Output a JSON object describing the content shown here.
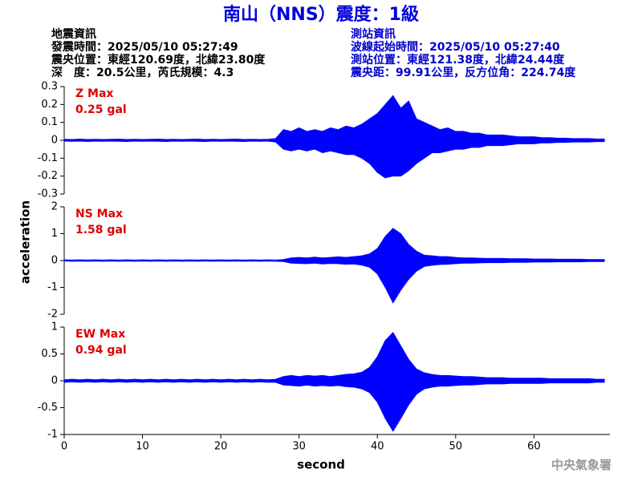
{
  "title": "南山（NNS）震度：1級",
  "info_left": [
    "地震資訊",
    "發震時間：2025/05/10 05:27:49",
    "震央位置：東經120.69度，北緯23.80度",
    "深　度：20.5公里，芮氏規模：4.3"
  ],
  "info_right": [
    "測站資訊",
    "波線起始時間：2025/05/10 05:27:40",
    "測站位置：東經121.38度，北緯24.44度",
    "震央距：99.91公里，反方位角：224.74度"
  ],
  "credit": "中央氣象署",
  "chart_data": [
    {
      "type": "line",
      "label": "Z Max",
      "max_text": "0.25 gal",
      "color": "#0000ff",
      "xlim": [
        0,
        69.7
      ],
      "ylim": [
        -0.3,
        0.3
      ],
      "yticks": [
        0.3,
        0.2,
        0.1,
        0,
        -0.1,
        -0.2,
        -0.3
      ],
      "x": [
        0,
        1,
        2,
        3,
        4,
        5,
        6,
        7,
        8,
        9,
        10,
        11,
        12,
        13,
        14,
        15,
        16,
        17,
        18,
        19,
        20,
        21,
        22,
        23,
        24,
        25,
        26,
        27,
        28,
        29,
        30,
        31,
        32,
        33,
        34,
        35,
        36,
        37,
        38,
        39,
        40,
        41,
        42,
        43,
        44,
        45,
        46,
        47,
        48,
        49,
        50,
        51,
        52,
        53,
        54,
        55,
        56,
        57,
        58,
        59,
        60,
        61,
        62,
        63,
        64,
        65,
        66,
        67,
        68,
        69
      ],
      "upper": [
        0.006,
        0.005,
        0.007,
        0.005,
        0.006,
        0.005,
        0.006,
        0.007,
        0.005,
        0.006,
        0.005,
        0.006,
        0.007,
        0.005,
        0.006,
        0.005,
        0.006,
        0.007,
        0.005,
        0.006,
        0.005,
        0.006,
        0.007,
        0.005,
        0.006,
        0.005,
        0.006,
        0.01,
        0.06,
        0.05,
        0.07,
        0.05,
        0.06,
        0.05,
        0.07,
        0.06,
        0.08,
        0.07,
        0.09,
        0.12,
        0.15,
        0.2,
        0.25,
        0.18,
        0.22,
        0.12,
        0.1,
        0.08,
        0.06,
        0.07,
        0.05,
        0.05,
        0.04,
        0.04,
        0.03,
        0.03,
        0.03,
        0.025,
        0.02,
        0.02,
        0.02,
        0.015,
        0.015,
        0.012,
        0.012,
        0.01,
        0.01,
        0.01,
        0.008,
        0.008
      ],
      "lower": [
        -0.005,
        -0.006,
        -0.005,
        -0.007,
        -0.005,
        -0.006,
        -0.005,
        -0.006,
        -0.007,
        -0.005,
        -0.006,
        -0.005,
        -0.006,
        -0.007,
        -0.005,
        -0.006,
        -0.005,
        -0.006,
        -0.007,
        -0.005,
        -0.006,
        -0.005,
        -0.006,
        -0.007,
        -0.005,
        -0.006,
        -0.005,
        -0.01,
        -0.05,
        -0.06,
        -0.05,
        -0.06,
        -0.05,
        -0.07,
        -0.06,
        -0.07,
        -0.08,
        -0.08,
        -0.1,
        -0.13,
        -0.18,
        -0.21,
        -0.2,
        -0.2,
        -0.17,
        -0.13,
        -0.1,
        -0.07,
        -0.07,
        -0.06,
        -0.05,
        -0.05,
        -0.04,
        -0.04,
        -0.03,
        -0.03,
        -0.03,
        -0.025,
        -0.02,
        -0.02,
        -0.02,
        -0.015,
        -0.015,
        -0.012,
        -0.012,
        -0.01,
        -0.01,
        -0.01,
        -0.008,
        -0.008
      ]
    },
    {
      "type": "line",
      "label": "NS Max",
      "max_text": "1.58 gal",
      "color": "#0000ff",
      "xlim": [
        0,
        69.7
      ],
      "ylim": [
        -2,
        2
      ],
      "yticks": [
        2,
        1,
        0,
        -1,
        -2
      ],
      "ylabel": "acceleration",
      "x": [
        0,
        1,
        2,
        3,
        4,
        5,
        6,
        7,
        8,
        9,
        10,
        11,
        12,
        13,
        14,
        15,
        16,
        17,
        18,
        19,
        20,
        21,
        22,
        23,
        24,
        25,
        26,
        27,
        28,
        29,
        30,
        31,
        32,
        33,
        34,
        35,
        36,
        37,
        38,
        39,
        40,
        41,
        42,
        43,
        44,
        45,
        46,
        47,
        48,
        49,
        50,
        51,
        52,
        53,
        54,
        55,
        56,
        57,
        58,
        59,
        60,
        61,
        62,
        63,
        64,
        65,
        66,
        67,
        68,
        69
      ],
      "upper": [
        0.03,
        0.02,
        0.03,
        0.02,
        0.03,
        0.02,
        0.03,
        0.02,
        0.03,
        0.02,
        0.03,
        0.02,
        0.03,
        0.02,
        0.03,
        0.02,
        0.03,
        0.02,
        0.03,
        0.02,
        0.03,
        0.02,
        0.03,
        0.02,
        0.03,
        0.02,
        0.03,
        0.02,
        0.04,
        0.1,
        0.12,
        0.1,
        0.13,
        0.1,
        0.12,
        0.14,
        0.12,
        0.15,
        0.18,
        0.25,
        0.45,
        0.9,
        1.2,
        1.0,
        0.6,
        0.35,
        0.2,
        0.18,
        0.15,
        0.15,
        0.12,
        0.1,
        0.1,
        0.09,
        0.08,
        0.08,
        0.08,
        0.07,
        0.07,
        0.07,
        0.06,
        0.06,
        0.06,
        0.05,
        0.05,
        0.05,
        0.05,
        0.04,
        0.04,
        0.04
      ],
      "lower": [
        -0.02,
        -0.03,
        -0.02,
        -0.03,
        -0.02,
        -0.03,
        -0.02,
        -0.03,
        -0.02,
        -0.03,
        -0.02,
        -0.03,
        -0.02,
        -0.03,
        -0.02,
        -0.03,
        -0.02,
        -0.03,
        -0.02,
        -0.03,
        -0.02,
        -0.03,
        -0.02,
        -0.03,
        -0.02,
        -0.03,
        -0.02,
        -0.03,
        -0.04,
        -0.1,
        -0.11,
        -0.12,
        -0.1,
        -0.13,
        -0.11,
        -0.12,
        -0.14,
        -0.13,
        -0.17,
        -0.25,
        -0.5,
        -1.0,
        -1.58,
        -1.1,
        -0.7,
        -0.4,
        -0.22,
        -0.18,
        -0.15,
        -0.14,
        -0.12,
        -0.1,
        -0.1,
        -0.09,
        -0.08,
        -0.08,
        -0.08,
        -0.07,
        -0.07,
        -0.07,
        -0.06,
        -0.06,
        -0.06,
        -0.05,
        -0.05,
        -0.05,
        -0.05,
        -0.04,
        -0.04,
        -0.04
      ]
    },
    {
      "type": "line",
      "label": "EW Max",
      "max_text": "0.94 gal",
      "color": "#0000ff",
      "xlim": [
        0,
        69.7
      ],
      "ylim": [
        -1,
        1
      ],
      "yticks": [
        1,
        0.5,
        0,
        -0.5,
        -1
      ],
      "xticks": [
        0,
        10,
        20,
        30,
        40,
        50,
        60
      ],
      "xlabel": "second",
      "x": [
        0,
        1,
        2,
        3,
        4,
        5,
        6,
        7,
        8,
        9,
        10,
        11,
        12,
        13,
        14,
        15,
        16,
        17,
        18,
        19,
        20,
        21,
        22,
        23,
        24,
        25,
        26,
        27,
        28,
        29,
        30,
        31,
        32,
        33,
        34,
        35,
        36,
        37,
        38,
        39,
        40,
        41,
        42,
        43,
        44,
        45,
        46,
        47,
        48,
        49,
        50,
        51,
        52,
        53,
        54,
        55,
        56,
        57,
        58,
        59,
        60,
        61,
        62,
        63,
        64,
        65,
        66,
        67,
        68,
        69
      ],
      "upper": [
        0.02,
        0.03,
        0.02,
        0.03,
        0.02,
        0.03,
        0.02,
        0.03,
        0.02,
        0.03,
        0.02,
        0.03,
        0.02,
        0.03,
        0.02,
        0.03,
        0.02,
        0.03,
        0.02,
        0.03,
        0.02,
        0.03,
        0.02,
        0.03,
        0.02,
        0.03,
        0.02,
        0.03,
        0.08,
        0.1,
        0.08,
        0.1,
        0.09,
        0.1,
        0.08,
        0.1,
        0.12,
        0.13,
        0.16,
        0.25,
        0.45,
        0.75,
        0.9,
        0.65,
        0.4,
        0.22,
        0.15,
        0.12,
        0.1,
        0.1,
        0.09,
        0.08,
        0.08,
        0.07,
        0.06,
        0.06,
        0.06,
        0.05,
        0.05,
        0.05,
        0.05,
        0.05,
        0.04,
        0.04,
        0.04,
        0.04,
        0.04,
        0.04,
        0.03,
        0.03
      ],
      "lower": [
        -0.03,
        -0.02,
        -0.03,
        -0.02,
        -0.03,
        -0.02,
        -0.03,
        -0.02,
        -0.03,
        -0.02,
        -0.03,
        -0.02,
        -0.03,
        -0.02,
        -0.03,
        -0.02,
        -0.03,
        -0.02,
        -0.03,
        -0.02,
        -0.03,
        -0.02,
        -0.03,
        -0.02,
        -0.03,
        -0.02,
        -0.03,
        -0.03,
        -0.08,
        -0.09,
        -0.1,
        -0.08,
        -0.1,
        -0.09,
        -0.1,
        -0.09,
        -0.11,
        -0.12,
        -0.15,
        -0.22,
        -0.4,
        -0.7,
        -0.94,
        -0.7,
        -0.45,
        -0.25,
        -0.15,
        -0.12,
        -0.1,
        -0.1,
        -0.09,
        -0.08,
        -0.08,
        -0.07,
        -0.06,
        -0.06,
        -0.06,
        -0.05,
        -0.05,
        -0.05,
        -0.05,
        -0.05,
        -0.04,
        -0.04,
        -0.04,
        -0.04,
        -0.04,
        -0.04,
        -0.03,
        -0.03
      ]
    }
  ]
}
